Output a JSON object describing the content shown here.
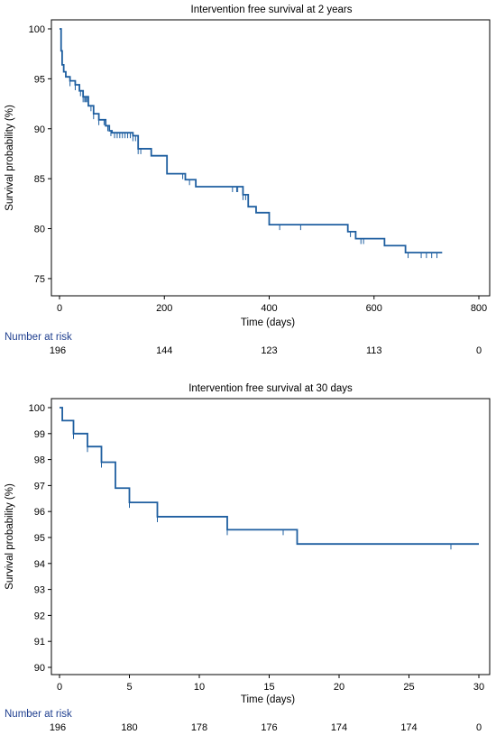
{
  "chart_data": [
    {
      "type": "line",
      "title": "Intervention free survival at 2 years",
      "xlabel": "Time (days)",
      "ylabel": "Survival probability (%)",
      "xlim": [
        0,
        800
      ],
      "ylim": [
        74,
        100
      ],
      "x_ticks": [
        0,
        200,
        400,
        600,
        800
      ],
      "y_ticks": [
        75,
        80,
        85,
        90,
        95,
        100
      ],
      "line_color": "#1f5fa0",
      "series": [
        {
          "step_x": [
            0,
            3,
            5,
            8,
            12,
            20,
            30,
            38,
            45,
            55,
            65,
            75,
            88,
            95,
            100,
            140,
            150,
            175,
            205,
            240,
            260,
            350,
            360,
            375,
            400,
            550,
            565,
            600,
            620,
            660,
            730
          ],
          "step_y": [
            100,
            97.8,
            96.4,
            95.7,
            95.2,
            94.8,
            94.4,
            93.8,
            93.2,
            92.3,
            91.5,
            90.9,
            90.3,
            89.8,
            89.6,
            89.3,
            88.0,
            87.3,
            85.5,
            84.9,
            84.2,
            83.4,
            82.2,
            81.6,
            80.4,
            79.7,
            79.0,
            79.0,
            78.3,
            77.6,
            77.6
          ],
          "censor_x": [
            20,
            30,
            40,
            45,
            48,
            50,
            52,
            60,
            65,
            75,
            85,
            92,
            98,
            105,
            110,
            115,
            120,
            125,
            130,
            135,
            140,
            145,
            150,
            155,
            235,
            248,
            330,
            338,
            340,
            350,
            355,
            420,
            460,
            555,
            575,
            580,
            665,
            690,
            700,
            710,
            720
          ]
        }
      ],
      "risk_table": {
        "label": "Number at risk",
        "values": [
          "196",
          "144",
          "123",
          "113",
          "0"
        ]
      }
    },
    {
      "type": "line",
      "title": "Intervention free survival at 30 days",
      "xlabel": "Time (days)",
      "ylabel": "Survival probability (%)",
      "xlim": [
        0,
        30
      ],
      "ylim": [
        90,
        100
      ],
      "x_ticks": [
        0,
        5,
        10,
        15,
        20,
        25,
        30
      ],
      "y_ticks": [
        90,
        91,
        92,
        93,
        94,
        95,
        96,
        97,
        98,
        99,
        100
      ],
      "line_color": "#1f5fa0",
      "series": [
        {
          "step_x": [
            0,
            0.2,
            1,
            2,
            3,
            4,
            5,
            7,
            12,
            17,
            30
          ],
          "step_y": [
            100,
            99.5,
            99.0,
            98.5,
            97.9,
            96.9,
            96.35,
            95.8,
            95.3,
            94.75,
            94.75
          ],
          "censor_x": [
            1,
            2,
            3,
            5,
            7,
            12,
            16,
            28
          ]
        }
      ],
      "risk_table": {
        "label": "Number at risk",
        "values": [
          "196",
          "180",
          "178",
          "176",
          "174",
          "174",
          "0"
        ]
      }
    }
  ]
}
